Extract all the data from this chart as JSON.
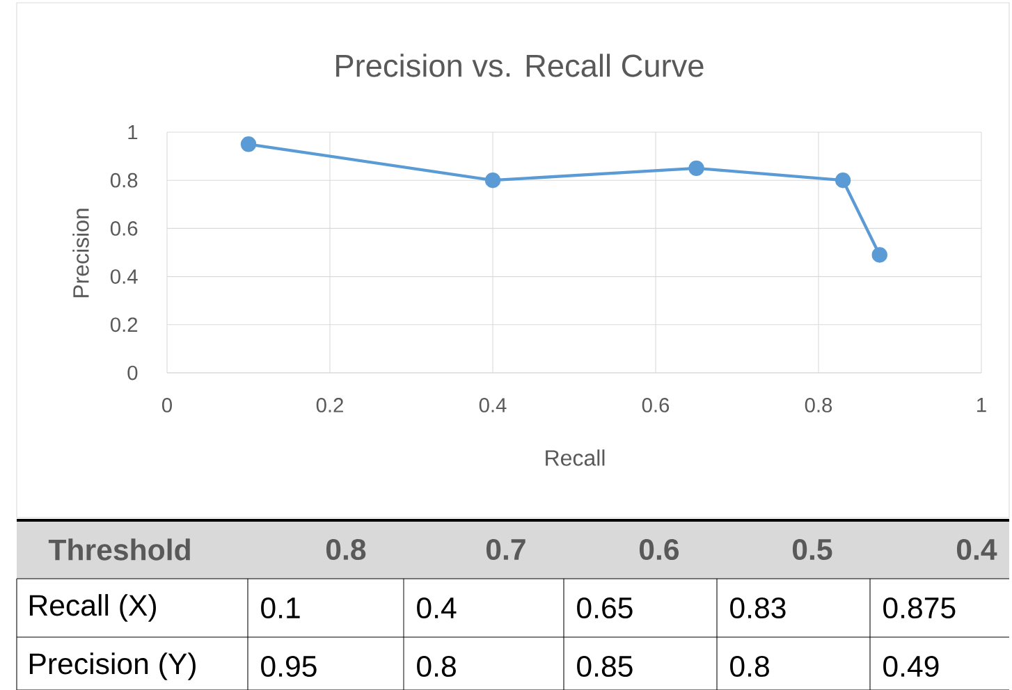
{
  "chart_data": {
    "type": "line",
    "title": "Precision vs. Recall Curve",
    "xlabel": "Recall",
    "ylabel": "Precision",
    "x": [
      0.1,
      0.4,
      0.65,
      0.83,
      0.875
    ],
    "series": [
      {
        "color": "#5b9bd5",
        "values": [
          0.95,
          0.8,
          0.85,
          0.8,
          0.49
        ]
      }
    ],
    "xlim": [
      0,
      1
    ],
    "ylim": [
      0,
      1
    ],
    "xticks": [
      0,
      0.2,
      0.4,
      0.6,
      0.8,
      1
    ],
    "yticks": [
      0,
      0.2,
      0.4,
      0.6,
      0.8,
      1
    ],
    "grid": true,
    "marker": "circle",
    "line_style": "solid",
    "legend": false,
    "annotations": [
      "Threshold",
      "0.8",
      "0.7",
      "0.6",
      "0.5",
      "0.4",
      "Recall (X)",
      "Precision (Y)",
      "0.1",
      "0.4",
      "0.65",
      "0.83",
      "0.875",
      "0.95",
      "0.8",
      "0.85",
      "0.8",
      "0.49"
    ]
  }
}
